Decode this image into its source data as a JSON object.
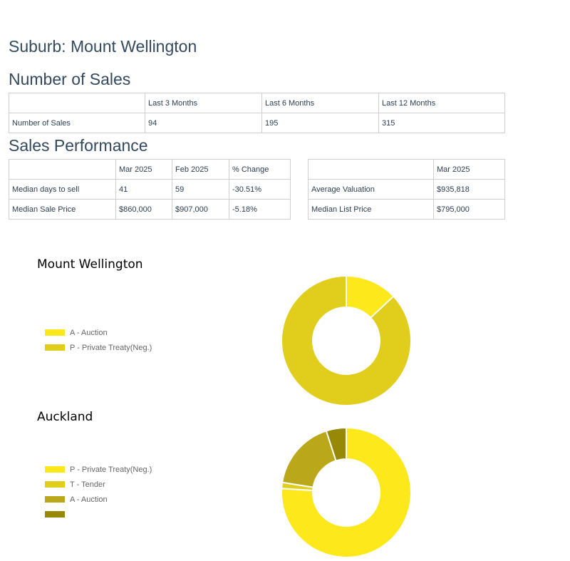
{
  "suburb_heading": "Suburb: Mount Wellington",
  "sales_section": {
    "title": "Number of Sales",
    "headers": [
      "",
      "Last 3 Months",
      "Last 6 Months",
      "Last 12 Months"
    ],
    "rows": [
      [
        "Number of Sales",
        "94",
        "195",
        "315"
      ]
    ]
  },
  "performance_section": {
    "title": "Sales Performance",
    "table1": {
      "headers": [
        "",
        "Mar 2025",
        "Feb 2025",
        "% Change"
      ],
      "rows": [
        [
          "Median days to sell",
          "41",
          "59",
          "-30.51%"
        ],
        [
          "Median Sale Price",
          "$860,000",
          "$907,000",
          "-5.18%"
        ]
      ]
    },
    "table2": {
      "headers": [
        "",
        "Mar 2025"
      ],
      "rows": [
        [
          "Average Valuation",
          "$935,818"
        ],
        [
          "Median List Price",
          "$795,000"
        ]
      ]
    }
  },
  "chart_data": [
    {
      "type": "pie",
      "title": "Mount Wellington",
      "legend_position": "left",
      "labels": [
        "A - Auction",
        "P - Private Treaty(Neg.)"
      ],
      "values": [
        13,
        87
      ],
      "colors": [
        "#fde81c",
        "#e0cd1c"
      ]
    },
    {
      "type": "pie",
      "title": "Auckland",
      "legend_position": "left",
      "labels": [
        "P - Private Treaty(Neg.)",
        "T - Tender",
        "A - Auction",
        ""
      ],
      "values": [
        76,
        1.5,
        17.5,
        5
      ],
      "colors": [
        "#fde81c",
        "#e0cd1c",
        "#bba81a",
        "#978806"
      ]
    }
  ]
}
